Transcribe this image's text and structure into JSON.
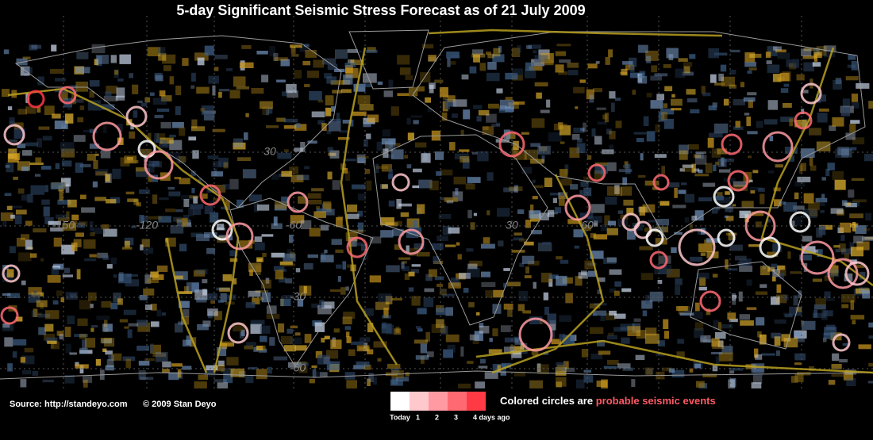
{
  "header": {
    "title": "5-day Significant Seismic Stress Forecast as of 21 July 2009"
  },
  "map": {
    "grid_labels": [
      "30",
      "-150",
      "-120",
      "-60",
      "30",
      "60",
      "-30",
      "-60"
    ]
  },
  "footer": {
    "source": "Source:   http://standeyo.com",
    "copyright": "© 2009 Stan Deyo",
    "legend": {
      "colors": [
        "#ffffff",
        "#ffc8cc",
        "#ff9aa2",
        "#ff6a72",
        "#ff3a44"
      ],
      "labels": [
        "Today",
        "1",
        "2",
        "3",
        "4  days ago"
      ]
    },
    "note": {
      "text": "Colored circles are",
      "highlight": "probable seismic events"
    }
  }
}
